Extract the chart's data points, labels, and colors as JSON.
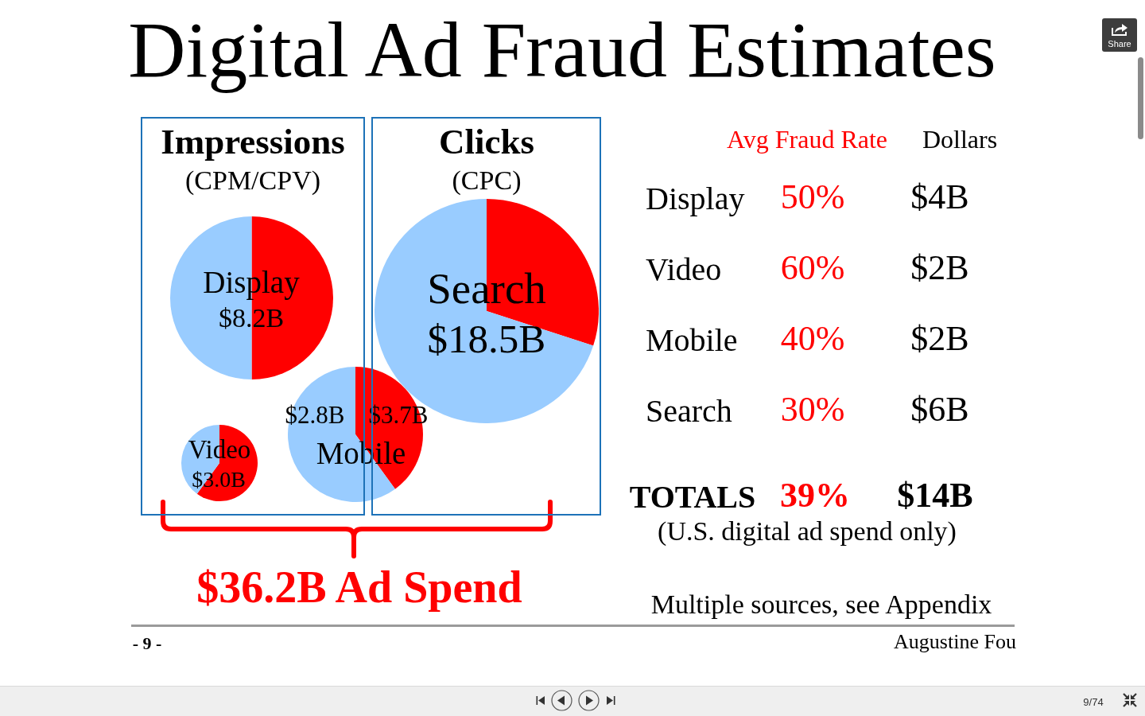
{
  "chart_data": [
    {
      "type": "other",
      "title": "Digital Ad Fraud Estimates"
    },
    {
      "type": "other",
      "title": "Impressions",
      "subtitle": "(CPM/CPV)"
    },
    {
      "type": "pie",
      "title": "Display",
      "annotations": [
        "$8.2B"
      ],
      "categories": [
        null,
        null
      ],
      "values": [
        50,
        50
      ],
      "colors": [
        "#ff0000",
        "#99ccff"
      ]
    },
    {
      "type": "pie",
      "title": "Video",
      "annotations": [
        "$3.0B"
      ],
      "categories": [
        null,
        null
      ],
      "values": [
        60,
        40
      ],
      "colors": [
        "#ff0000",
        "#99ccff"
      ]
    },
    {
      "type": "pie",
      "title": "Mobile",
      "annotations": [
        "$2.8B",
        "$3.7B"
      ],
      "categories": [
        null,
        null
      ],
      "values": [
        40,
        60
      ],
      "colors": [
        "#ff0000",
        "#99ccff"
      ]
    },
    {
      "type": "other",
      "title": "Clicks",
      "subtitle": "(CPC)"
    },
    {
      "type": "pie",
      "title": "Search",
      "annotations": [
        "$18.5B"
      ],
      "categories": [
        null,
        null
      ],
      "values": [
        30,
        70
      ],
      "colors": [
        "#ff0000",
        "#99ccff"
      ]
    },
    {
      "type": "other",
      "title": "$36.2B Ad Spend",
      "color": "#ff0000"
    },
    {
      "type": "other",
      "categories": [
        "Display",
        "Video",
        "Mobile",
        "Search",
        "TOTALS"
      ],
      "series": [
        {
          "name": "Avg Fraud Rate",
          "color": "#ff0000",
          "values": [
            50,
            60,
            40,
            30,
            39
          ],
          "value_labels": [
            "50%",
            "60%",
            "40%",
            "30%",
            "39%"
          ]
        },
        {
          "name": "Dollars",
          "color": "#000000",
          "values": [
            4,
            2,
            2,
            6,
            14
          ],
          "value_labels": [
            "$4B",
            "$2B",
            "$2B",
            "$6B",
            "$14B"
          ]
        }
      ],
      "annotations": [
        "(U.S. digital ad spend only)",
        "Multiple sources, see Appendix"
      ]
    },
    {
      "type": "other",
      "annotations": [
        "- 9 -",
        "Augustine Fou"
      ]
    },
    {
      "type": "other",
      "annotations": [
        "Share",
        "9/74"
      ]
    }
  ]
}
